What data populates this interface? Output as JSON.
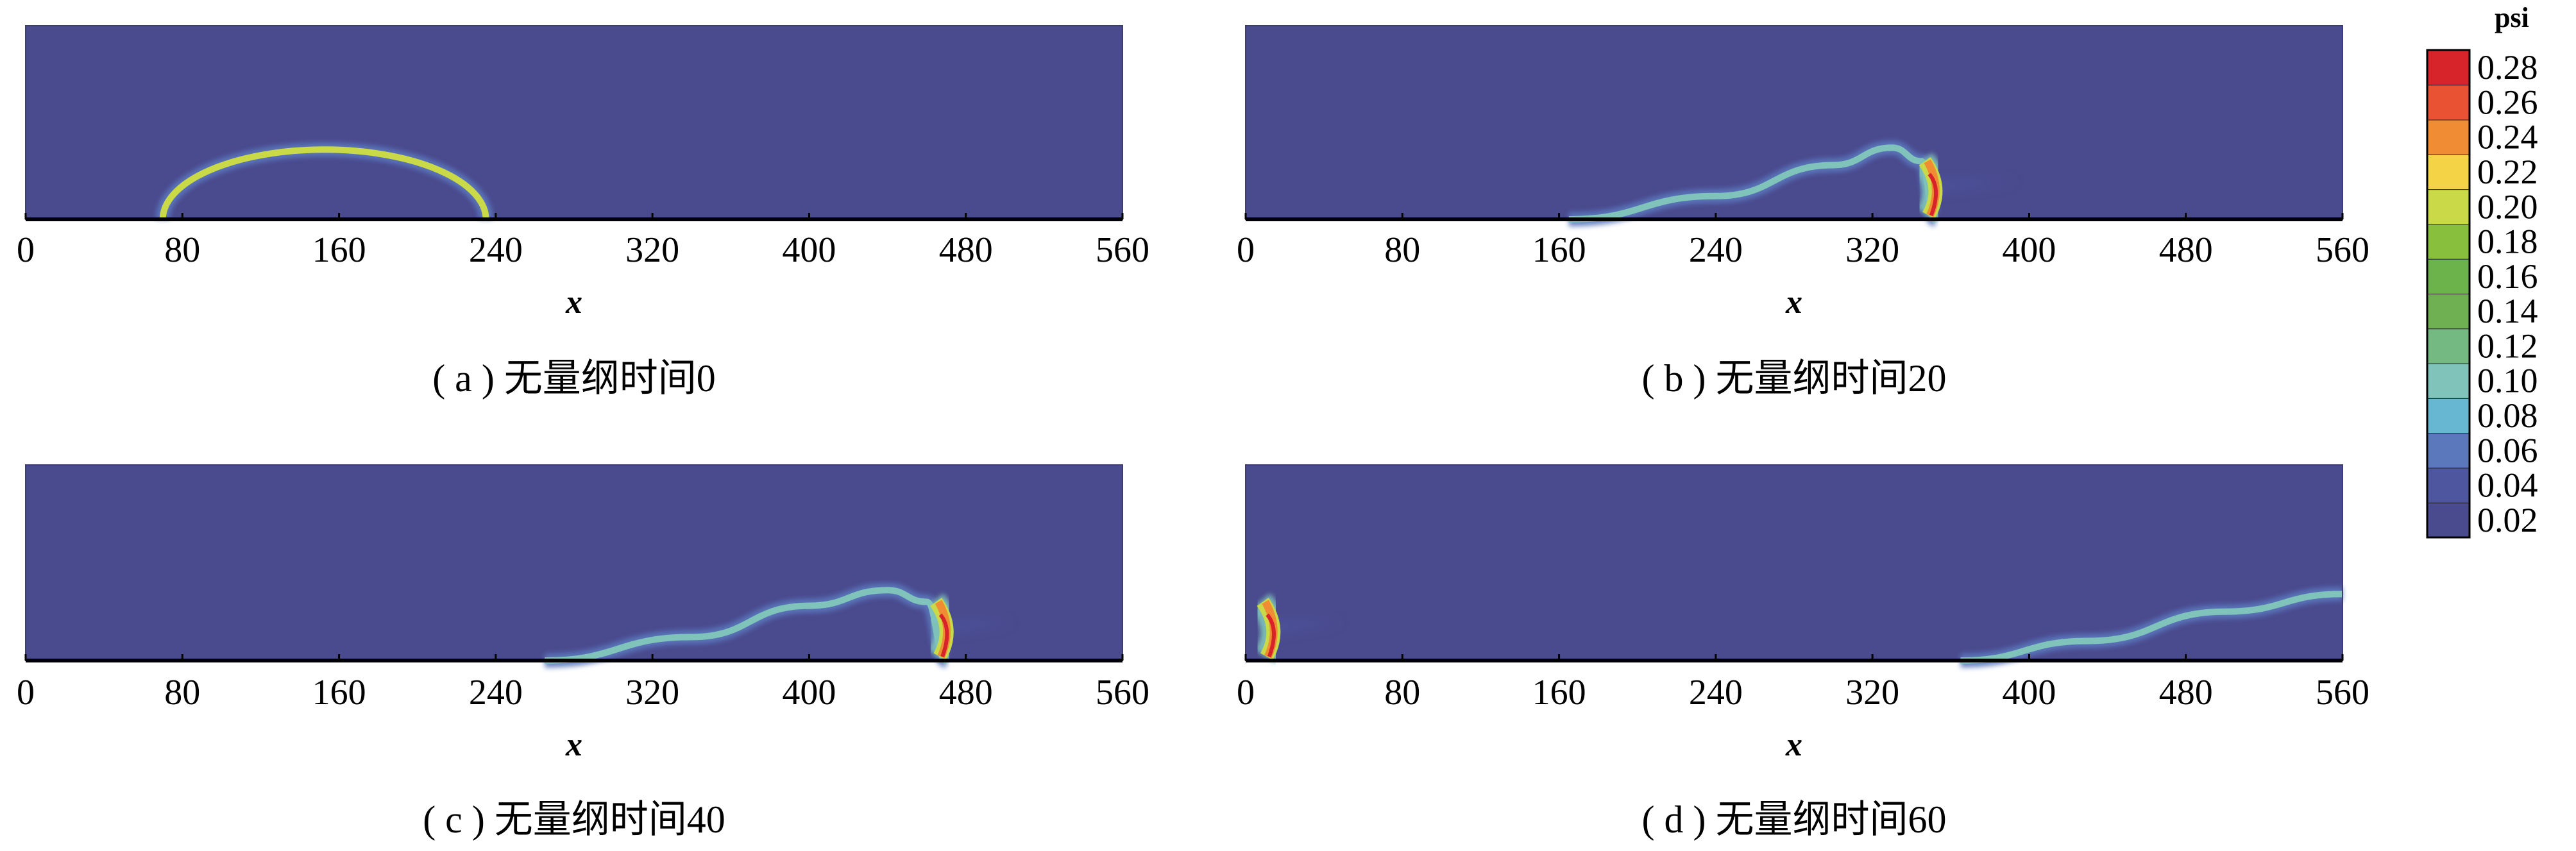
{
  "chart_data": {
    "type": "heatmap",
    "variable": "psi",
    "panels": [
      {
        "id": "a",
        "caption": "( a ) 无量纲时间0",
        "xlabel": "x",
        "xlim": [
          0,
          560
        ],
        "xticks": [
          "0",
          "80",
          "160",
          "240",
          "320",
          "400",
          "480",
          "560"
        ],
        "interface": {
          "shape": "semicircle",
          "x": [
            70,
            110,
            150,
            190,
            235
          ],
          "height_fraction": [
            0,
            0.28,
            0.36,
            0.28,
            0
          ],
          "peak_psi": 0.2
        },
        "focus": null
      },
      {
        "id": "b",
        "caption": "( b ) 无量纲时间20",
        "xlabel": "x",
        "xlim": [
          0,
          560
        ],
        "xticks": [
          "0",
          "80",
          "160",
          "240",
          "320",
          "400",
          "480",
          "560"
        ],
        "interface": {
          "shape": "wave",
          "x": [
            165,
            240,
            300,
            330,
            345,
            352
          ],
          "height_fraction": [
            0,
            0.12,
            0.28,
            0.37,
            0.3,
            0
          ],
          "peak_psi": 0.1
        },
        "focus": {
          "x": 350,
          "peak_psi": 0.28,
          "tail_to_x": 395
        }
      },
      {
        "id": "c",
        "caption": "( c ) 无量纲时间40",
        "xlabel": "x",
        "xlim": [
          0,
          560
        ],
        "xticks": [
          "0",
          "80",
          "160",
          "240",
          "320",
          "400",
          "480",
          "560"
        ],
        "interface": {
          "shape": "wave",
          "x": [
            265,
            340,
            400,
            440,
            460,
            470
          ],
          "height_fraction": [
            0,
            0.12,
            0.28,
            0.36,
            0.3,
            0
          ],
          "peak_psi": 0.1
        },
        "focus": {
          "x": 468,
          "peak_psi": 0.28,
          "tail_to_x": 505
        }
      },
      {
        "id": "d",
        "caption": "( d ) 无量纲时间60",
        "xlabel": "x",
        "xlim": [
          0,
          560
        ],
        "xticks": [
          "0",
          "80",
          "160",
          "240",
          "320",
          "400",
          "480",
          "560"
        ],
        "interface": {
          "shape": "wave",
          "x": [
            365,
            430,
            500,
            560
          ],
          "height_fraction": [
            0,
            0.1,
            0.25,
            0.34
          ],
          "peak_psi": 0.1
        },
        "focus": {
          "x": 12,
          "peak_psi": 0.28,
          "tail_to_x": 50
        }
      }
    ],
    "colorbar": {
      "title": "psi",
      "levels": [
        0.02,
        0.04,
        0.06,
        0.08,
        0.1,
        0.12,
        0.14,
        0.16,
        0.18,
        0.2,
        0.22,
        0.24,
        0.26,
        0.28
      ],
      "labels": [
        "0.02",
        "0.04",
        "0.06",
        "0.08",
        "0.10",
        "0.12",
        "0.14",
        "0.16",
        "0.18",
        "0.20",
        "0.22",
        "0.24",
        "0.26",
        "0.28"
      ],
      "colors": [
        "#4a4a8e",
        "#4e56a0",
        "#5c78bd",
        "#67b7d3",
        "#7fc3bb",
        "#75b982",
        "#6fb152",
        "#6db34c",
        "#88bf3c",
        "#c9d948",
        "#f4d347",
        "#f08c33",
        "#ea5234",
        "#d7232a"
      ]
    }
  }
}
